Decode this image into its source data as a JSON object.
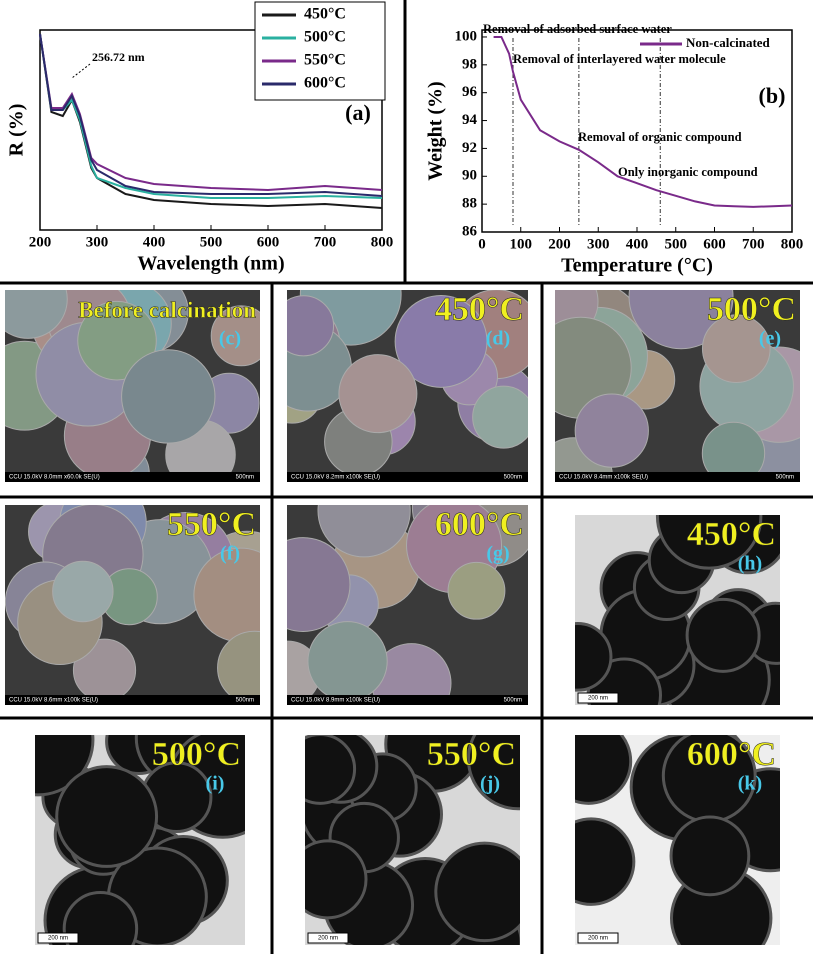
{
  "chart_data": [
    {
      "type": "line",
      "ylabel": "R (%)",
      "xlabel": "Wavelength (nm)",
      "panel": "(a)",
      "annotation": "256.72 nm",
      "x": [
        200,
        220,
        240,
        256,
        270,
        290,
        300,
        350,
        400,
        500,
        600,
        700,
        800
      ],
      "xlim": [
        200,
        800
      ],
      "xticks": [
        200,
        300,
        400,
        500,
        600,
        700,
        800
      ],
      "ylim": [
        0,
        100
      ],
      "series": [
        {
          "name": "450°C",
          "color": "#1a1a1a",
          "values": [
            98,
            59,
            57,
            65,
            54,
            31,
            26,
            18,
            15,
            13,
            12,
            13,
            11
          ]
        },
        {
          "name": "500°C",
          "color": "#2ab0a0",
          "values": [
            98,
            60,
            60,
            65,
            55,
            32,
            26,
            21,
            18,
            16,
            16,
            17,
            16
          ]
        },
        {
          "name": "550°C",
          "color": "#7a2a8a",
          "values": [
            98,
            61,
            61,
            68,
            58,
            36,
            33,
            26,
            23,
            21,
            20,
            22,
            20
          ]
        },
        {
          "name": "600°C",
          "color": "#2a2a6a",
          "values": [
            98,
            60,
            60,
            67,
            57,
            35,
            30,
            22,
            19,
            18,
            18,
            19,
            17
          ]
        }
      ]
    },
    {
      "type": "line",
      "ylabel": "Weight (%)",
      "xlabel": "Temperature (°C)",
      "panel": "(b)",
      "x": [
        30,
        50,
        70,
        80,
        100,
        150,
        200,
        250,
        300,
        350,
        400,
        450,
        500,
        550,
        600,
        650,
        700,
        750,
        800
      ],
      "xlim": [
        0,
        800
      ],
      "xticks": [
        0,
        100,
        200,
        300,
        400,
        500,
        600,
        700,
        800
      ],
      "ylim": [
        86,
        100.5
      ],
      "yticks": [
        86,
        88,
        90,
        92,
        94,
        96,
        98,
        100
      ],
      "markers": [
        80,
        250,
        460
      ],
      "annotations": [
        "Removal of adsorbed surface water",
        "Removal of interlayered water molecule",
        "Removal of organic compound",
        "Only inorganic compound"
      ],
      "series": [
        {
          "name": "Non-calcinated",
          "color": "#7a2a8a",
          "values": [
            100,
            100,
            98.8,
            97.5,
            95.5,
            93.3,
            92.5,
            91.9,
            91.0,
            90.0,
            89.5,
            89.0,
            88.6,
            88.2,
            87.9,
            87.85,
            87.8,
            87.85,
            87.9
          ]
        }
      ]
    }
  ],
  "panels": [
    {
      "label": "Before calcination",
      "tag": "(c)",
      "caption": "CCU 15.0kV 8.0mm x60.0k SE(U)",
      "scale": "500nm"
    },
    {
      "label": "450°C",
      "tag": "(d)",
      "caption": "CCU 15.0kV 8.2mm x100k SE(U)",
      "scale": "500nm"
    },
    {
      "label": "500°C",
      "tag": "(e)",
      "caption": "CCU 15.0kV 8.4mm x100k SE(U)",
      "scale": "500nm"
    },
    {
      "label": "550°C",
      "tag": "(f)",
      "caption": "CCU 15.0kV 8.6mm x100k SE(U)",
      "scale": "500nm"
    },
    {
      "label": "600°C",
      "tag": "(g)",
      "caption": "CCU 15.0kV 8.9mm x100k SE(U)",
      "scale": "500nm"
    },
    {
      "label": "450°C",
      "tag": "(h)",
      "scale": "200 nm"
    },
    {
      "label": "500°C",
      "tag": "(i)",
      "scale": "200 nm"
    },
    {
      "label": "550°C",
      "tag": "(j)",
      "scale": "200 nm"
    },
    {
      "label": "600°C",
      "tag": "(k)",
      "scale": "200 nm"
    }
  ]
}
